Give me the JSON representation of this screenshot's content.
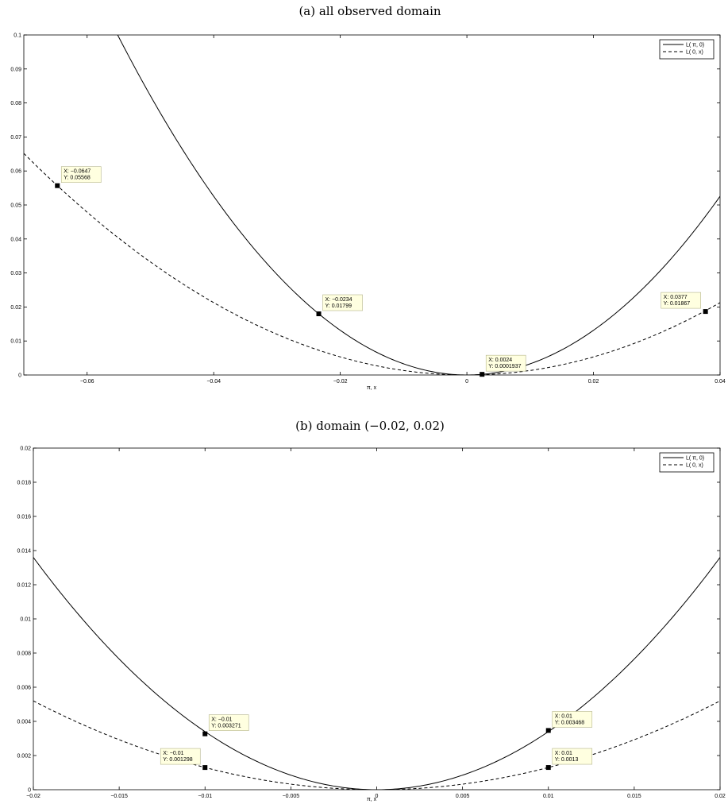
{
  "chart_data": [
    {
      "type": "line",
      "title": "(a) all observed domain",
      "xlabel": "π, x",
      "ylabel": "",
      "xlim": [
        -0.07,
        0.04
      ],
      "ylim": [
        0,
        0.1
      ],
      "xticks": [
        -0.06,
        -0.04,
        -0.02,
        0,
        0.02,
        0.04
      ],
      "xtick_labels": [
        "−0.06",
        "−0.04",
        "−0.02",
        "0",
        "0.02",
        "0.04"
      ],
      "yticks": [
        0,
        0.01,
        0.02,
        0.03,
        0.04,
        0.05,
        0.06,
        0.07,
        0.08,
        0.09,
        0.1
      ],
      "ytick_labels": [
        "0",
        "0.01",
        "0.02",
        "0.03",
        "0.04",
        "0.05",
        "0.06",
        "0.07",
        "0.08",
        "0.09",
        "0.1"
      ],
      "grid": false,
      "legend_position": "top-right",
      "series": [
        {
          "name": "L( π, 0)",
          "style": "solid",
          "coef": 32.85,
          "x_range": [
            -0.07,
            0.04
          ]
        },
        {
          "name": "L( 0, x)",
          "style": "dashed",
          "coef": 13.3,
          "x_range": [
            -0.07,
            0.04
          ]
        }
      ],
      "datatips": [
        {
          "x": -0.0647,
          "y": 0.05568,
          "x_label": "X: −0.0647",
          "y_label": "Y: 0.05568",
          "position": "above-right"
        },
        {
          "x": -0.0234,
          "y": 0.01799,
          "x_label": "X: −0.0234",
          "y_label": "Y: 0.01799",
          "position": "above-right"
        },
        {
          "x": 0.0024,
          "y": 0.0001937,
          "x_label": "X: 0.0024",
          "y_label": "Y: 0.0001937",
          "position": "above-right"
        },
        {
          "x": 0.0377,
          "y": 0.01867,
          "x_label": "X: 0.0377",
          "y_label": "Y: 0.01867",
          "position": "above-left"
        }
      ]
    },
    {
      "type": "line",
      "title": "(b) domain (−0.02, 0.02)",
      "xlabel": "π, x",
      "ylabel": "",
      "xlim": [
        -0.02,
        0.02
      ],
      "ylim": [
        0,
        0.02
      ],
      "xticks": [
        -0.02,
        -0.015,
        -0.01,
        -0.005,
        0,
        0.005,
        0.01,
        0.015,
        0.02
      ],
      "xtick_labels": [
        "−0.02",
        "−0.015",
        "−0.01",
        "−0.005",
        "0",
        "0.005",
        "0.01",
        "0.015",
        "0.02"
      ],
      "yticks": [
        0,
        0.002,
        0.004,
        0.006,
        0.008,
        0.01,
        0.012,
        0.014,
        0.016,
        0.018,
        0.02
      ],
      "ytick_labels": [
        "0",
        "0.002",
        "0.004",
        "0.006",
        "0.008",
        "0.01",
        "0.012",
        "0.014",
        "0.016",
        "0.018",
        "0.02"
      ],
      "grid": false,
      "legend_position": "top-right",
      "series": [
        {
          "name": "L( π, 0)",
          "style": "solid",
          "coef": 34.0,
          "x_range": [
            -0.02,
            0.02
          ]
        },
        {
          "name": "L( 0, x)",
          "style": "dashed",
          "coef": 13.0,
          "x_range": [
            -0.02,
            0.02
          ]
        }
      ],
      "datatips": [
        {
          "x": -0.01,
          "y": 0.003271,
          "x_label": "X: −0.01",
          "y_label": "Y: 0.003271",
          "position": "above-right"
        },
        {
          "x": -0.01,
          "y": 0.001298,
          "x_label": "X: −0.01",
          "y_label": "Y: 0.001298",
          "position": "above-left"
        },
        {
          "x": 0.01,
          "y": 0.003468,
          "x_label": "X: 0.01",
          "y_label": "Y: 0.003468",
          "position": "above-right"
        },
        {
          "x": 0.01,
          "y": 0.0013,
          "x_label": "X: 0.01",
          "y_label": "Y: 0.0013",
          "position": "above-right"
        }
      ]
    }
  ]
}
